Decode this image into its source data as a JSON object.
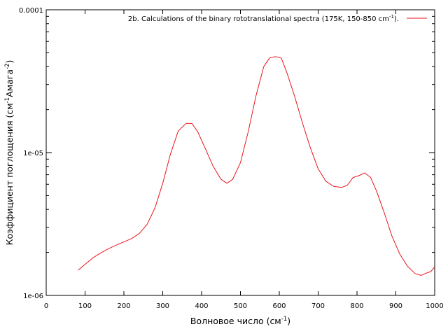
{
  "chart_data": {
    "type": "line",
    "title": "",
    "xlabel": "Волновое число (см",
    "xlabel_sup": "-1",
    "xlabel_tail": ")",
    "ylabel": "Коэффициент поглощения (см",
    "ylabel_sup1": "-1",
    "ylabel_mid": "Амага",
    "ylabel_sup2": "-2",
    "ylabel_tail": ")",
    "xlim": [
      0,
      1000
    ],
    "ylim": [
      1e-06,
      0.0001
    ],
    "yscale": "log",
    "grid": false,
    "legend_position": "top-right",
    "x_ticks": [
      0,
      100,
      200,
      300,
      400,
      500,
      600,
      700,
      800,
      900,
      1000
    ],
    "y_ticks": [
      {
        "value": 1e-06,
        "label": "1e-06"
      },
      {
        "value": 1e-05,
        "label": "1e-05"
      },
      {
        "value": 0.0001,
        "label": "0.0001"
      }
    ],
    "series": [
      {
        "name": "2b. Calculations of the binary rototranslational spectra  (175K, 150-850 cm",
        "name_sup": "-1",
        "name_tail": ").",
        "color": "#e8141b",
        "x": [
          82,
          100,
          120,
          140,
          160,
          180,
          200,
          220,
          240,
          260,
          280,
          300,
          320,
          340,
          360,
          375,
          390,
          410,
          430,
          450,
          465,
          480,
          500,
          520,
          540,
          560,
          575,
          590,
          605,
          620,
          640,
          660,
          680,
          700,
          720,
          740,
          760,
          775,
          790,
          805,
          820,
          835,
          850,
          870,
          890,
          910,
          930,
          950,
          965,
          975,
          990,
          1000
        ],
        "y": [
          1.5e-06,
          1.65e-06,
          1.83e-06,
          1.98e-06,
          2.12e-06,
          2.25e-06,
          2.37e-06,
          2.5e-06,
          2.72e-06,
          3.15e-06,
          4.1e-06,
          6.1e-06,
          9.8e-06,
          1.42e-05,
          1.6e-05,
          1.6e-05,
          1.4e-05,
          1.06e-05,
          8e-06,
          6.5e-06,
          6.1e-06,
          6.5e-06,
          8.5e-06,
          1.4e-05,
          2.5e-05,
          4e-05,
          4.6e-05,
          4.7e-05,
          4.6e-05,
          3.6e-05,
          2.45e-05,
          1.6e-05,
          1.08e-05,
          7.7e-06,
          6.3e-06,
          5.8e-06,
          5.7e-06,
          5.9e-06,
          6.7e-06,
          6.9e-06,
          7.2e-06,
          6.7e-06,
          5.4e-06,
          3.8e-06,
          2.6e-06,
          1.95e-06,
          1.6e-06,
          1.42e-06,
          1.38e-06,
          1.42e-06,
          1.47e-06,
          1.58e-06
        ]
      }
    ]
  }
}
